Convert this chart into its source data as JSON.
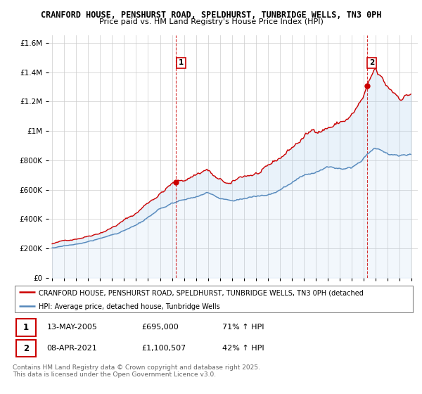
{
  "title1": "CRANFORD HOUSE, PENSHURST ROAD, SPELDHURST, TUNBRIDGE WELLS, TN3 0PH",
  "title2": "Price paid vs. HM Land Registry's House Price Index (HPI)",
  "legend_line1": "CRANFORD HOUSE, PENSHURST ROAD, SPELDHURST, TUNBRIDGE WELLS, TN3 0PH (detached",
  "legend_line2": "HPI: Average price, detached house, Tunbridge Wells",
  "transaction1_date": "13-MAY-2005",
  "transaction1_price": "£695,000",
  "transaction1_hpi": "71% ↑ HPI",
  "transaction2_date": "08-APR-2021",
  "transaction2_price": "£1,100,507",
  "transaction2_hpi": "42% ↑ HPI",
  "footer": "Contains HM Land Registry data © Crown copyright and database right 2025.\nThis data is licensed under the Open Government Licence v3.0.",
  "house_color": "#cc0000",
  "hpi_color": "#5588bb",
  "hpi_fill_color": "#ddeeff",
  "vline_color": "#cc0000",
  "bg_color": "#ffffff",
  "plot_bg_color": "#ffffff",
  "grid_color": "#cccccc",
  "ylim_min": 0,
  "ylim_max": 1650000,
  "start_year": 1995,
  "end_year": 2025
}
